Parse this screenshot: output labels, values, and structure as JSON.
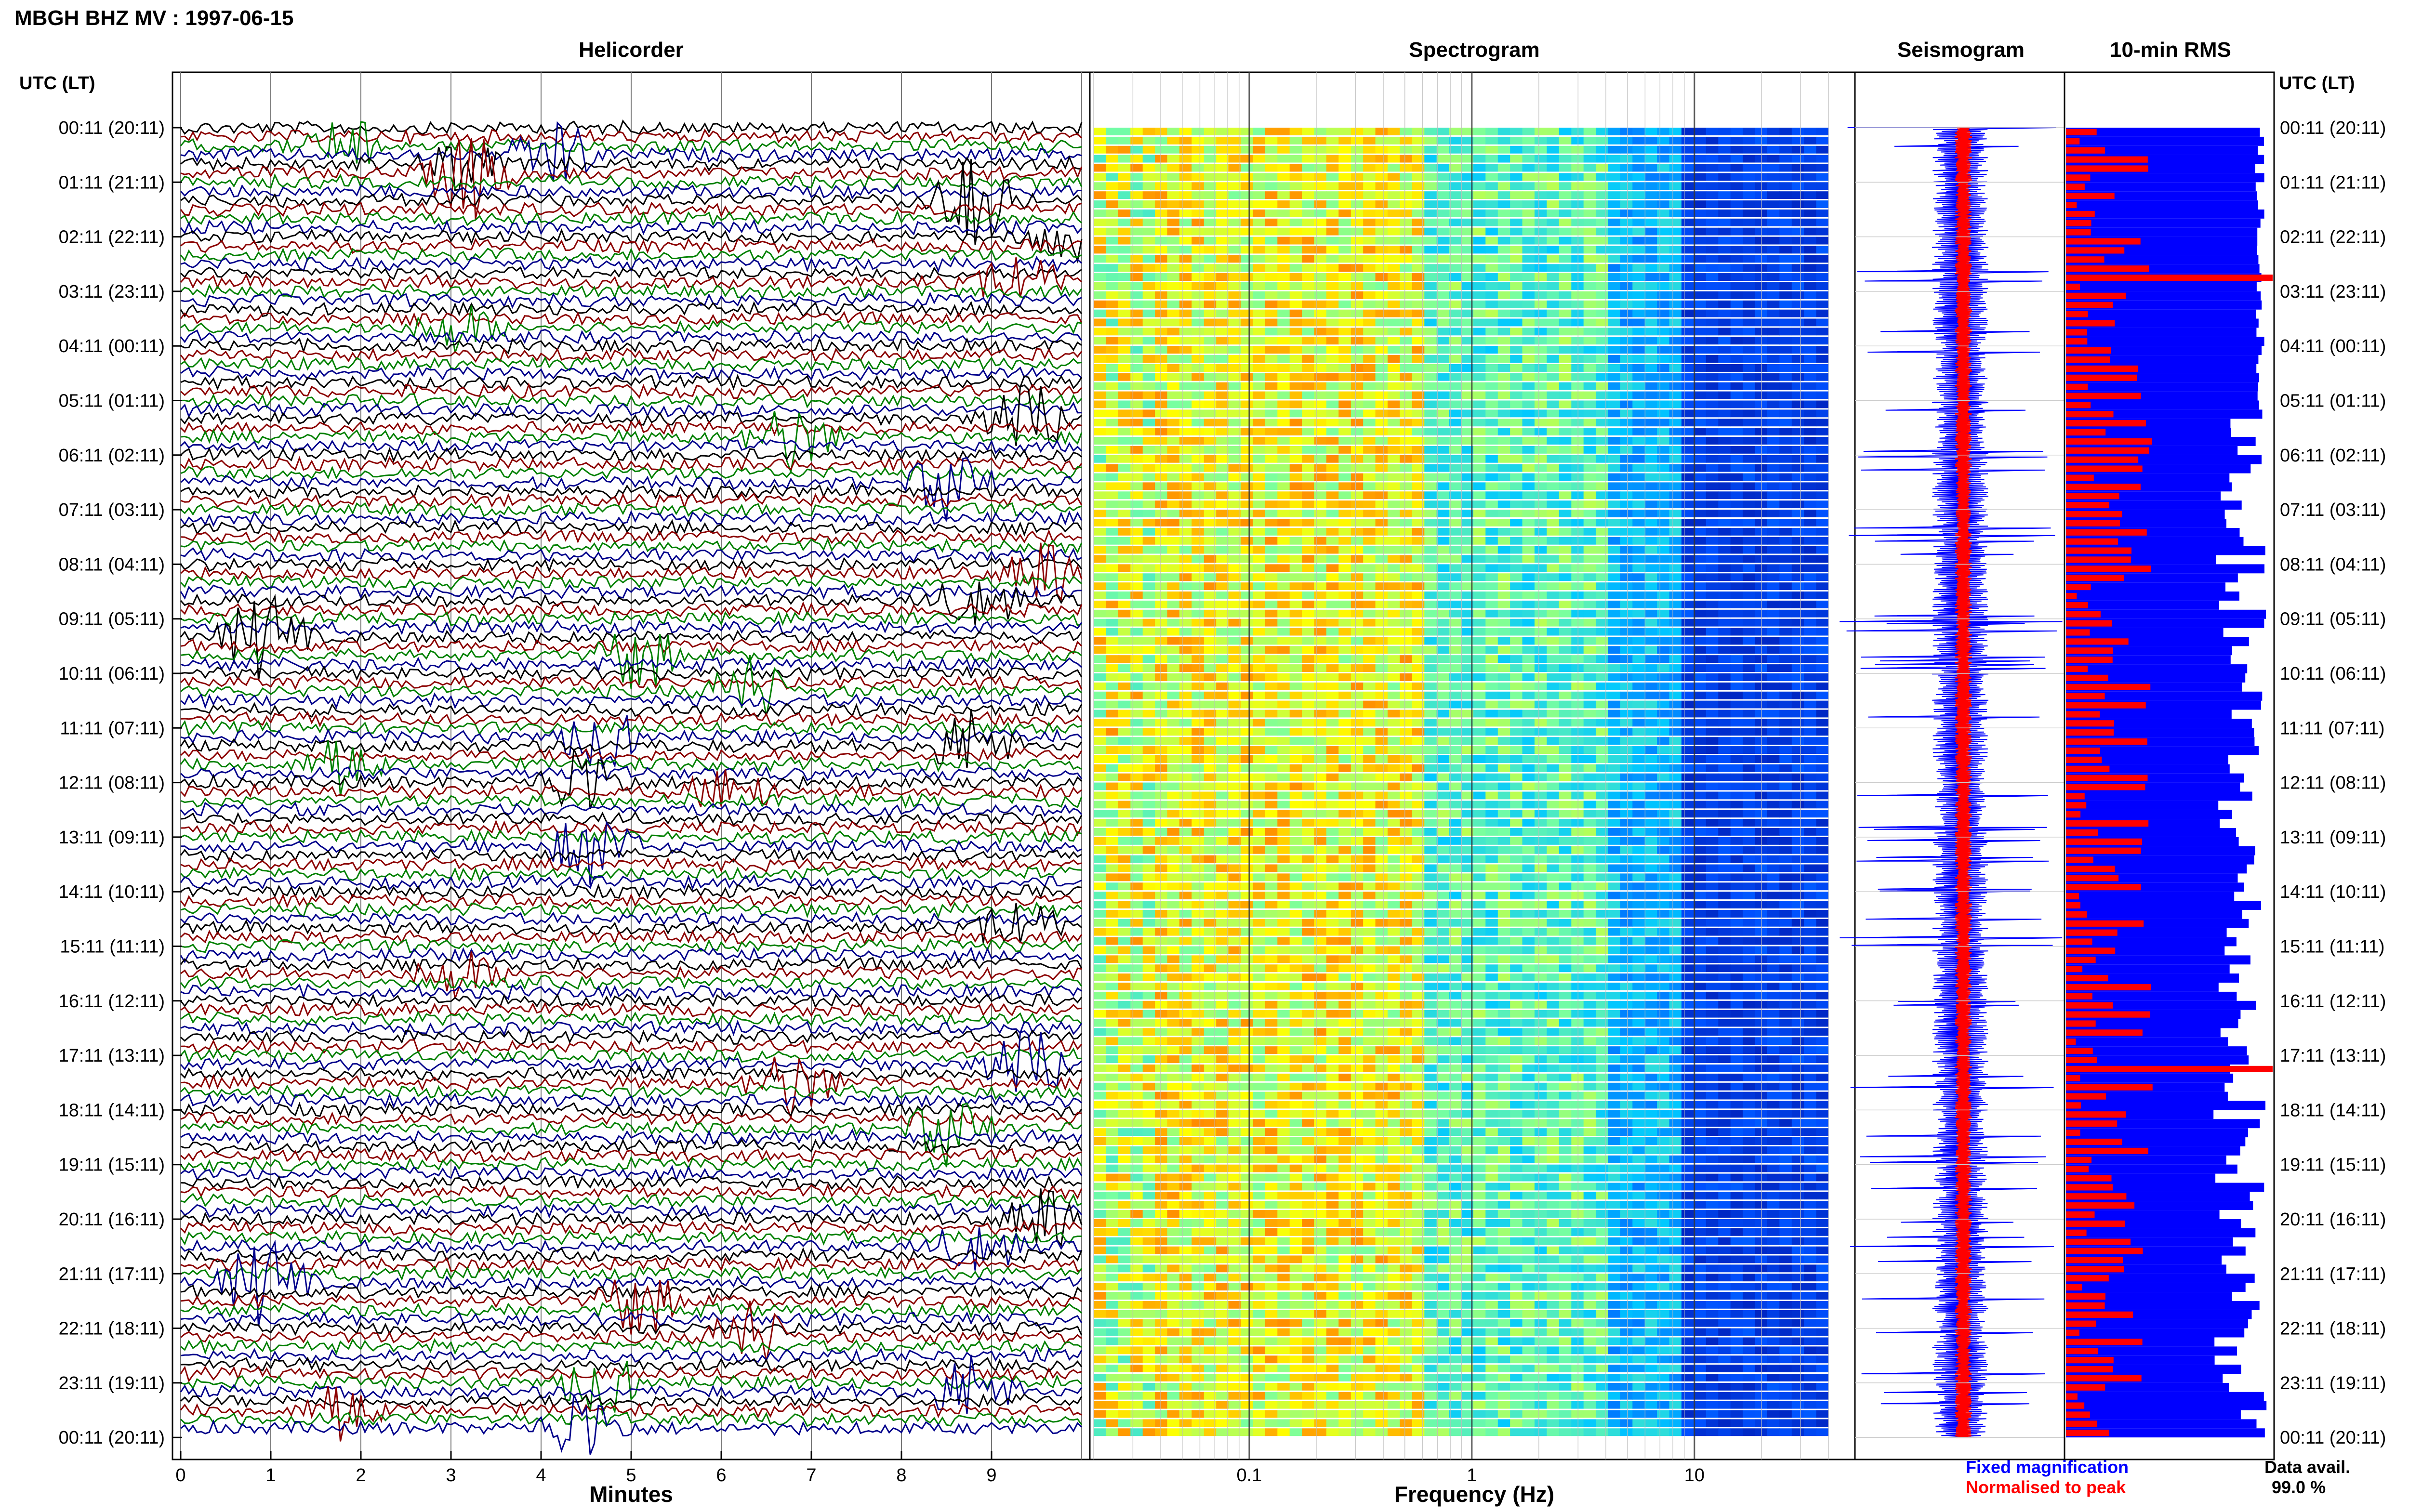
{
  "header": {
    "title": "MBGH BHZ MV : 1997-06-15"
  },
  "panels": {
    "helicorder": "Helicorder",
    "spectrogram": "Spectrogram",
    "seismogram": "Seismogram",
    "rms": "10-min RMS"
  },
  "time_axis": {
    "header_left": "UTC (LT)",
    "header_right": "UTC (LT)",
    "labels": [
      "00:11 (20:11)",
      "01:11 (21:11)",
      "02:11 (22:11)",
      "03:11 (23:11)",
      "04:11 (00:11)",
      "05:11 (01:11)",
      "06:11 (02:11)",
      "07:11 (03:11)",
      "08:11 (04:11)",
      "09:11 (05:11)",
      "10:11 (06:11)",
      "11:11 (07:11)",
      "12:11 (08:11)",
      "13:11 (09:11)",
      "14:11 (10:11)",
      "15:11 (11:11)",
      "16:11 (12:11)",
      "17:11 (13:11)",
      "18:11 (14:11)",
      "19:11 (15:11)",
      "20:11 (16:11)",
      "21:11 (17:11)",
      "22:11 (18:11)",
      "23:11 (19:11)",
      "00:11 (20:11)"
    ]
  },
  "helicorder_axis": {
    "ticks": [
      "0",
      "1",
      "2",
      "3",
      "4",
      "5",
      "6",
      "7",
      "8",
      "9"
    ],
    "label": "Minutes"
  },
  "spectrogram_axis": {
    "ticks": [
      "0.1",
      "1",
      "10"
    ],
    "label": "Frequency (Hz)",
    "scale": "log"
  },
  "legend": {
    "fixed": "Fixed magnification",
    "normalised": "Normalised to peak",
    "availability_label": "Data avail.",
    "availability_value": "99.0 %"
  },
  "colors": {
    "trace_colors": [
      "#000000",
      "#8b0000",
      "#008000",
      "#00008b"
    ],
    "fixed": "#0000ff",
    "normalised": "#ff0000"
  },
  "chart_data": {
    "type": "helicorder",
    "hours": 24,
    "minutes_range": [
      0,
      10
    ],
    "frequency_range_hz": [
      0.02,
      40
    ],
    "rms_approx": {
      "normalised_peaks_hour_index": [
        2.7,
        17.2
      ],
      "description_values": "relative 10-min RMS per interval"
    }
  }
}
